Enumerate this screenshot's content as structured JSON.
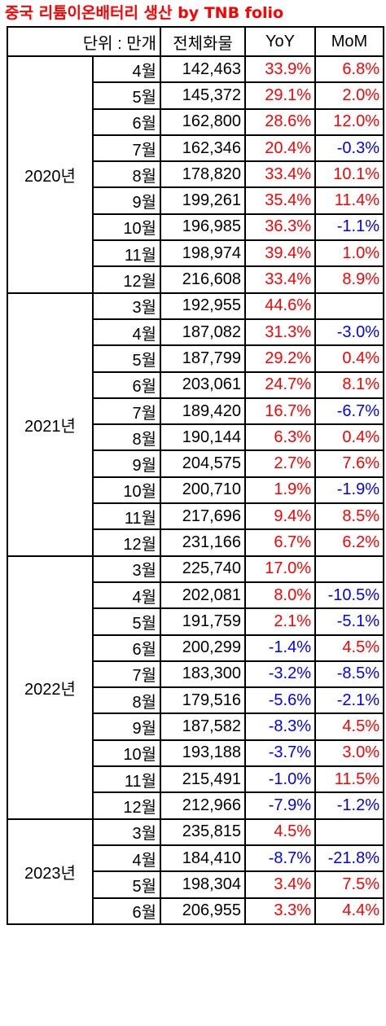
{
  "title": "중국 리튬이온배터리 생산 by TNB folio",
  "header": {
    "unit": "단위 : 만개",
    "total": "전체화물",
    "yoy": "YoY",
    "mom": "MoM"
  },
  "colors": {
    "positive": "#ff0000",
    "negative": "#0000ff"
  },
  "groups": [
    {
      "year": "2020년",
      "rows": [
        {
          "month": "4월",
          "total": "142,463",
          "yoy": "33.9%",
          "mom": "6.8%"
        },
        {
          "month": "5월",
          "total": "145,372",
          "yoy": "29.1%",
          "mom": "2.0%"
        },
        {
          "month": "6월",
          "total": "162,800",
          "yoy": "28.6%",
          "mom": "12.0%"
        },
        {
          "month": "7월",
          "total": "162,346",
          "yoy": "20.4%",
          "mom": "-0.3%"
        },
        {
          "month": "8월",
          "total": "178,820",
          "yoy": "33.4%",
          "mom": "10.1%"
        },
        {
          "month": "9월",
          "total": "199,261",
          "yoy": "35.4%",
          "mom": "11.4%"
        },
        {
          "month": "10월",
          "total": "196,985",
          "yoy": "36.3%",
          "mom": "-1.1%"
        },
        {
          "month": "11월",
          "total": "198,974",
          "yoy": "39.4%",
          "mom": "1.0%"
        },
        {
          "month": "12월",
          "total": "216,608",
          "yoy": "33.4%",
          "mom": "8.9%"
        }
      ]
    },
    {
      "year": "2021년",
      "rows": [
        {
          "month": "3월",
          "total": "192,955",
          "yoy": "44.6%",
          "mom": ""
        },
        {
          "month": "4월",
          "total": "187,082",
          "yoy": "31.3%",
          "mom": "-3.0%"
        },
        {
          "month": "5월",
          "total": "187,799",
          "yoy": "29.2%",
          "mom": "0.4%"
        },
        {
          "month": "6월",
          "total": "203,061",
          "yoy": "24.7%",
          "mom": "8.1%"
        },
        {
          "month": "7월",
          "total": "189,420",
          "yoy": "16.7%",
          "mom": "-6.7%"
        },
        {
          "month": "8월",
          "total": "190,144",
          "yoy": "6.3%",
          "mom": "0.4%"
        },
        {
          "month": "9월",
          "total": "204,575",
          "yoy": "2.7%",
          "mom": "7.6%"
        },
        {
          "month": "10월",
          "total": "200,710",
          "yoy": "1.9%",
          "mom": "-1.9%"
        },
        {
          "month": "11월",
          "total": "217,696",
          "yoy": "9.4%",
          "mom": "8.5%"
        },
        {
          "month": "12월",
          "total": "231,166",
          "yoy": "6.7%",
          "mom": "6.2%"
        }
      ]
    },
    {
      "year": "2022년",
      "rows": [
        {
          "month": "3월",
          "total": "225,740",
          "yoy": "17.0%",
          "mom": ""
        },
        {
          "month": "4월",
          "total": "202,081",
          "yoy": "8.0%",
          "mom": "-10.5%"
        },
        {
          "month": "5월",
          "total": "191,759",
          "yoy": "2.1%",
          "mom": "-5.1%"
        },
        {
          "month": "6월",
          "total": "200,299",
          "yoy": "-1.4%",
          "mom": "4.5%"
        },
        {
          "month": "7월",
          "total": "183,300",
          "yoy": "-3.2%",
          "mom": "-8.5%"
        },
        {
          "month": "8월",
          "total": "179,516",
          "yoy": "-5.6%",
          "mom": "-2.1%"
        },
        {
          "month": "9월",
          "total": "187,582",
          "yoy": "-8.3%",
          "mom": "4.5%"
        },
        {
          "month": "10월",
          "total": "193,188",
          "yoy": "-3.7%",
          "mom": "3.0%"
        },
        {
          "month": "11월",
          "total": "215,491",
          "yoy": "-1.0%",
          "mom": "11.5%"
        },
        {
          "month": "12월",
          "total": "212,966",
          "yoy": "-7.9%",
          "mom": "-1.2%"
        }
      ]
    },
    {
      "year": "2023년",
      "rows": [
        {
          "month": "3월",
          "total": "235,815",
          "yoy": "4.5%",
          "mom": ""
        },
        {
          "month": "4월",
          "total": "184,410",
          "yoy": "-8.7%",
          "mom": "-21.8%"
        },
        {
          "month": "5월",
          "total": "198,304",
          "yoy": "3.4%",
          "mom": "7.5%"
        },
        {
          "month": "6월",
          "total": "206,955",
          "yoy": "3.3%",
          "mom": "4.4%"
        }
      ]
    }
  ]
}
